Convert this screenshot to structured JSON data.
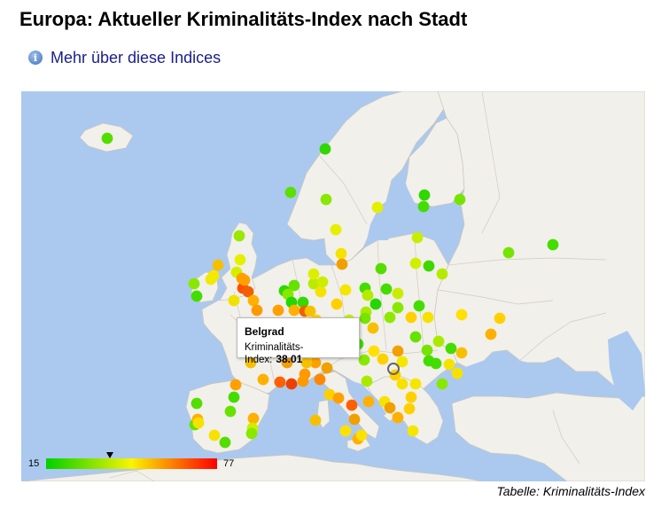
{
  "page": {
    "title": "Europa: Aktueller Kriminalitäts-Index nach Stadt",
    "more_link": "Mehr über diese Indices",
    "caption": "Tabelle: Kriminalitäts-Index"
  },
  "legend": {
    "min": "15",
    "max": "77",
    "marker_value": 38.01
  },
  "tooltip": {
    "city": "Belgrad",
    "label": "Kriminalitäts-Index:",
    "value": "38.01"
  },
  "colors": {
    "ocean": "#abc9ef",
    "land": "#f2f0ea",
    "link": "#1a1e8c",
    "low": "#00d000",
    "mid": "#f9f400",
    "high": "#ff0000"
  }
}
